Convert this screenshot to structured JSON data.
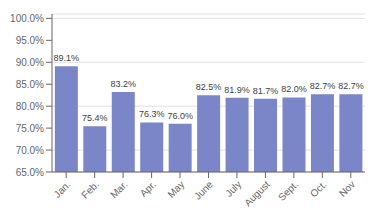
{
  "chart_data": {
    "type": "bar",
    "categories": [
      "Jan.",
      "Feb.",
      "Mar.",
      "Apr.",
      "May",
      "June",
      "July",
      "August",
      "Sept.",
      "Oct.",
      "Nov"
    ],
    "values": [
      89.1,
      75.4,
      83.2,
      76.3,
      76.0,
      82.5,
      81.9,
      81.7,
      82.0,
      82.7,
      82.7
    ],
    "value_labels": [
      "89.1%",
      "75.4%",
      "83.2%",
      "76.3%",
      "76.0%",
      "82.5%",
      "81.9%",
      "81.7%",
      "82.0%",
      "82.7%",
      "82.7%"
    ],
    "data_labels": true,
    "color": "#7b86c8",
    "ylim": [
      65.0,
      101.0
    ],
    "yticks": [
      {
        "value": 65.0,
        "label": "65.0%"
      },
      {
        "value": 70.0,
        "label": "70.0%"
      },
      {
        "value": 75.0,
        "label": "75.0%"
      },
      {
        "value": 80.0,
        "label": "80.0%"
      },
      {
        "value": 85.0,
        "label": "85.0%"
      },
      {
        "value": 90.0,
        "label": "90.0%"
      },
      {
        "value": 95.0,
        "label": "95.0%"
      },
      {
        "value": 100.0,
        "label": "100.0%"
      }
    ],
    "grid": true
  }
}
